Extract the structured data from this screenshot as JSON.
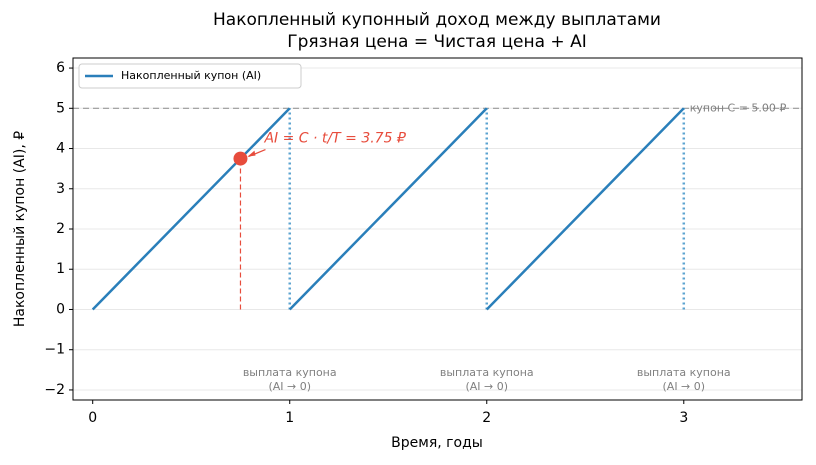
{
  "chart_data": {
    "type": "line",
    "title": "Накопленный купонный доход между выплатами",
    "subtitle": "Грязная цена = Чистая цена + AI",
    "xlabel": "Время, годы",
    "ylabel": "Накопленный купон (AI), ₽",
    "x": [
      0,
      1,
      1,
      1,
      2,
      2,
      2,
      3
    ],
    "series": [
      {
        "name": "Накопленный купон (AI)",
        "color": "#2a7fba",
        "values": [
          0,
          5,
          null,
          0,
          5,
          null,
          0,
          5
        ]
      }
    ],
    "xlim": [
      -0.1,
      3.6
    ],
    "ylim": [
      -2.25,
      6.25
    ],
    "xticks": [
      0,
      1,
      2,
      3
    ],
    "yticks": [
      {
        "value": -2,
        "label": "−2"
      },
      {
        "value": -1,
        "label": "−1"
      },
      0,
      1,
      2,
      3,
      4,
      5,
      6
    ],
    "grid": true,
    "legend": "upper left",
    "coupon": {
      "value": 5,
      "label": "купон C = 5.00 ₽",
      "color": "#999999"
    },
    "point": {
      "x": 0.75,
      "y": 3.75,
      "label": "AI = C · t/T = 3.75 ₽",
      "color": "#e74c3c"
    },
    "payments": {
      "x": [
        1,
        2,
        3
      ],
      "color": "#5ba3d0",
      "label": [
        "выплата купона",
        "(AI → 0)"
      ]
    }
  }
}
